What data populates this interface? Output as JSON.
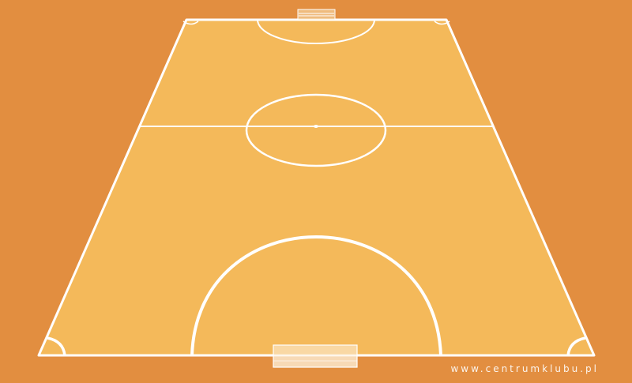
{
  "colors": {
    "background": "#E28E40",
    "court_surface": "#F4B95A",
    "lines": "#FFFFFF"
  },
  "watermark": {
    "text": "www.centrumklubu.pl"
  },
  "court": {
    "type": "futsal-court",
    "view": "perspective",
    "goals": 2
  }
}
